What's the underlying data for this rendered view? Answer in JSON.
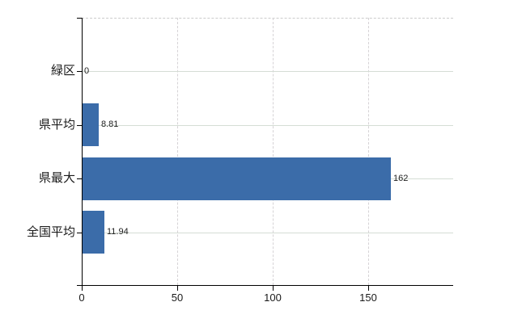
{
  "chart_data": {
    "type": "bar",
    "orientation": "horizontal",
    "title": "",
    "xlabel": "",
    "ylabel": "",
    "categories": [
      "緑区",
      "県平均",
      "県最大",
      "全国平均"
    ],
    "values": [
      0,
      8.81,
      162,
      11.94
    ],
    "value_labels": [
      "0",
      "8.81",
      "162",
      "11.94"
    ],
    "x_ticks": [
      0,
      50,
      100,
      150
    ],
    "x_tick_labels": [
      "0",
      "50",
      "100",
      "150"
    ],
    "xlim": [
      0,
      194
    ],
    "grid": true,
    "legend_position": "none",
    "bar_color": "#3b6ca9",
    "axis_color": "#000000",
    "h_gridline_color": "#d5ddd5",
    "v_gridline_color": "#d6d3d6",
    "top_border_color": "#cccccc",
    "text_color": "#1a1a1a"
  }
}
